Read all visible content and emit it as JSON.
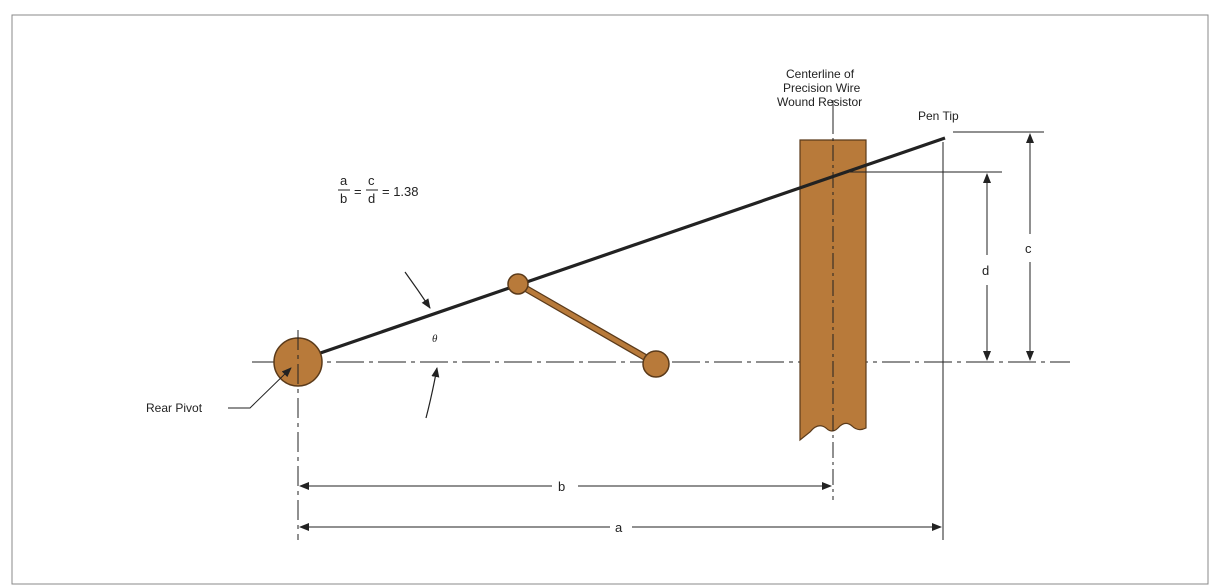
{
  "labels": {
    "centerline_line1": "Centerline of",
    "centerline_line2": "Precision Wire",
    "centerline_line3": "Wound Resistor",
    "pen_tip": "Pen Tip",
    "rear_pivot": "Rear Pivot",
    "theta": "θ"
  },
  "formula": {
    "a": "a",
    "b": "b",
    "c": "c",
    "d": "d",
    "value": "= 1.38"
  },
  "dimensions": {
    "a": "a",
    "b": "b",
    "c": "c",
    "d": "d"
  },
  "colors": {
    "component_fill": "#b87a3a",
    "component_stroke": "#5a3a1a",
    "line": "#222222",
    "frame": "#888888"
  }
}
